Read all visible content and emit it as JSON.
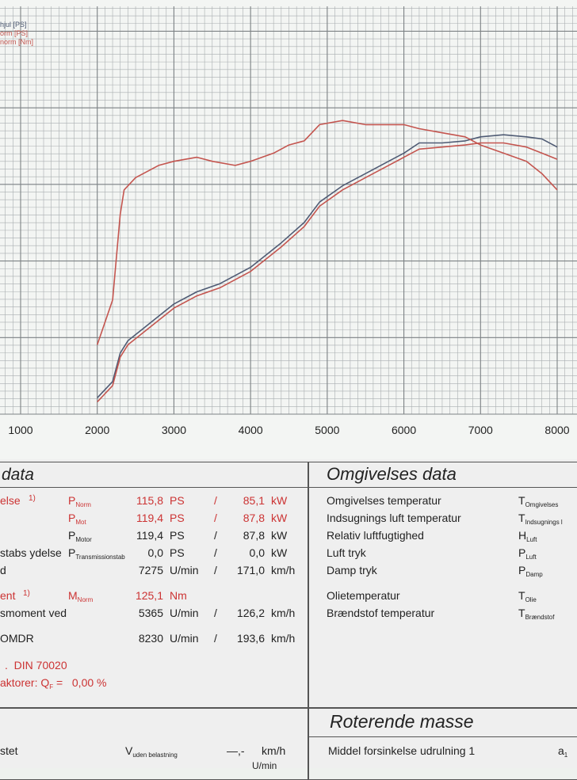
{
  "legend": {
    "items": [
      {
        "text": "hjul [PS]",
        "color": "#4f5b74"
      },
      {
        "text": "orm [PS]",
        "color": "#c4554f"
      },
      {
        "text": "norm [Nm]",
        "color": "#c4554f"
      }
    ]
  },
  "chart_data": {
    "type": "line",
    "xlim": [
      1000,
      8000
    ],
    "x_ticks": [
      "1000",
      "2000",
      "3000",
      "4000",
      "5000",
      "6000",
      "7000",
      "8000"
    ],
    "ylim": [
      0,
      1
    ],
    "grid": true,
    "series": [
      {
        "color": "#4f5b74",
        "x": [
          2000,
          2200,
          2300,
          2400,
          2600,
          3000,
          3300,
          3600,
          4000,
          4400,
          4700,
          4900,
          5200,
          5500,
          5800,
          6000,
          6200,
          6500,
          6800,
          7000,
          7300,
          7600,
          7800,
          8000
        ],
        "y": [
          0.04,
          0.08,
          0.15,
          0.18,
          0.21,
          0.27,
          0.3,
          0.32,
          0.36,
          0.42,
          0.47,
          0.52,
          0.56,
          0.59,
          0.62,
          0.64,
          0.665,
          0.665,
          0.67,
          0.68,
          0.685,
          0.68,
          0.675,
          0.655
        ]
      },
      {
        "color": "#c4554f",
        "x": [
          2000,
          2200,
          2300,
          2400,
          2600,
          3000,
          3300,
          3600,
          4000,
          4400,
          4700,
          4900,
          5200,
          5500,
          5800,
          6000,
          6200,
          6500,
          6800,
          7000,
          7300,
          7600,
          7800,
          8000
        ],
        "y": [
          0.03,
          0.07,
          0.14,
          0.17,
          0.2,
          0.26,
          0.29,
          0.31,
          0.35,
          0.41,
          0.46,
          0.51,
          0.55,
          0.58,
          0.61,
          0.63,
          0.65,
          0.655,
          0.66,
          0.665,
          0.665,
          0.655,
          0.64,
          0.625
        ]
      },
      {
        "color": "#c4554f",
        "x": [
          2000,
          2200,
          2300,
          2350,
          2500,
          2800,
          3000,
          3300,
          3500,
          3800,
          4000,
          4300,
          4500,
          4700,
          4900,
          5200,
          5500,
          5800,
          6000,
          6200,
          6500,
          6800,
          7000,
          7300,
          7600,
          7800,
          8000
        ],
        "y": [
          0.17,
          0.28,
          0.49,
          0.55,
          0.58,
          0.61,
          0.62,
          0.63,
          0.62,
          0.61,
          0.62,
          0.64,
          0.66,
          0.67,
          0.71,
          0.72,
          0.71,
          0.71,
          0.71,
          0.7,
          0.69,
          0.68,
          0.66,
          0.64,
          0.62,
          0.59,
          0.55
        ]
      }
    ]
  },
  "left_table": {
    "header": "data",
    "rows": [
      {
        "label": "else",
        "note": "1)",
        "sym": "P",
        "sym_sub": "Norm",
        "value": "115,8",
        "unit": "PS",
        "sep": "/",
        "value2": "85,1",
        "unit2": "kW",
        "red": true
      },
      {
        "label": "",
        "note": "",
        "sym": "P",
        "sym_sub": "Mot",
        "value": "119,4",
        "unit": "PS",
        "sep": "/",
        "value2": "87,8",
        "unit2": "kW",
        "red": true
      },
      {
        "label": "",
        "note": "",
        "sym": "P",
        "sym_sub": "Motor",
        "value": "119,4",
        "unit": "PS",
        "sep": "/",
        "value2": "87,8",
        "unit2": "kW",
        "red": false
      },
      {
        "label": "stabs ydelse",
        "note": "",
        "sym": "P",
        "sym_sub": "Transmissionstab",
        "value": "0,0",
        "unit": "PS",
        "sep": "/",
        "value2": "0,0",
        "unit2": "kW",
        "red": false
      },
      {
        "label": "d",
        "note": "",
        "sym": "",
        "sym_sub": "",
        "value": "7275",
        "unit": "U/min",
        "sep": "/",
        "value2": "171,0",
        "unit2": "km/h",
        "red": false
      },
      {
        "label": "ent",
        "note": "1)",
        "sym": "M",
        "sym_sub": "Norm",
        "value": "125,1",
        "unit": "Nm",
        "sep": "",
        "value2": "",
        "unit2": "",
        "red": true
      },
      {
        "label": "smoment ved",
        "note": "",
        "sym": "",
        "sym_sub": "",
        "value": "5365",
        "unit": "U/min",
        "sep": "/",
        "value2": "126,2",
        "unit2": "km/h",
        "red": false
      },
      {
        "label": "OMDR",
        "note": "",
        "sym": "",
        "sym_sub": "",
        "value": "8230",
        "unit": "U/min",
        "sep": "/",
        "value2": "193,6",
        "unit2": "km/h",
        "red": false
      }
    ],
    "din": "DIN 70020",
    "faktor_label": "aktorer: Q",
    "faktor_sub": "F",
    "faktor_eq": "=",
    "faktor_value": "0,00 %",
    "bottom_label": "stet",
    "bottom_sym": "V",
    "bottom_sym_sub": "uden belastning",
    "bottom_value": "—,-",
    "bottom_unit": "km/h",
    "bottom_partial": "U/min"
  },
  "right_table": {
    "header": "Omgivelses data",
    "rows": [
      {
        "label": "Omgivelses temperatur",
        "sym": "T",
        "sym_sub": "Omgivelses"
      },
      {
        "label": "Indsugnings luft temperatur",
        "sym": "T",
        "sym_sub": "Indsugnings l"
      },
      {
        "label": "Relativ luftfugtighed",
        "sym": "H",
        "sym_sub": "Luft"
      },
      {
        "label": "Luft tryk",
        "sym": "P",
        "sym_sub": "Luft"
      },
      {
        "label": "Damp tryk",
        "sym": "P",
        "sym_sub": "Damp"
      },
      {
        "label": "Olietemperatur",
        "sym": "T",
        "sym_sub": "Olie"
      },
      {
        "label": "Brændstof temperatur",
        "sym": "T",
        "sym_sub": "Brændstof"
      }
    ],
    "header2": "Roterende masse",
    "bottom_row": {
      "label": "Middel forsinkelse udrulning 1",
      "sym": "a",
      "sym_sub": "1"
    }
  }
}
